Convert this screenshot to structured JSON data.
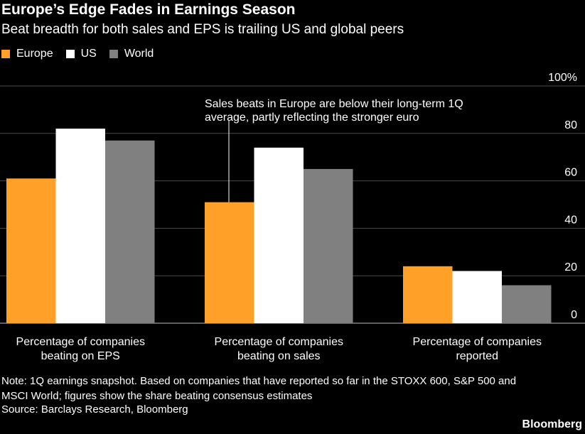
{
  "header": {
    "title": "Europe’s Edge Fades in Earnings Season",
    "subtitle": "Beat breadth for both sales and EPS is trailing US and global peers"
  },
  "colors": {
    "europe": "#FFA029",
    "us": "#FFFFFF",
    "world": "#808080",
    "grid": "#4a4a4a",
    "axis": "#bfbfbf"
  },
  "chart_data": {
    "type": "bar",
    "title": "Europe’s Edge Fades in Earnings Season",
    "categories": [
      [
        "Percentage of companies",
        "beating on EPS"
      ],
      [
        "Percentage of companies",
        "beating on sales"
      ],
      [
        "Percentage of companies",
        "reported"
      ]
    ],
    "series": [
      {
        "name": "Europe",
        "values": [
          61,
          51,
          24
        ]
      },
      {
        "name": "US",
        "values": [
          82,
          74,
          22
        ]
      },
      {
        "name": "World",
        "values": [
          77,
          65,
          16
        ]
      }
    ],
    "ylim": [
      0,
      100
    ],
    "yticks": [
      0,
      20,
      40,
      60,
      80,
      100
    ],
    "ytick_labels": [
      "0",
      "20",
      "40",
      "60",
      "80",
      "100%"
    ],
    "legend_position": "top-left",
    "annotation": {
      "lines": [
        "Sales beats in Europe are below their long-term 1Q",
        "average, partly reflecting the stronger euro"
      ],
      "target_series": 0,
      "target_category": 1
    }
  },
  "footer": {
    "note_line1": "Note: 1Q earnings snapshot. Based on companies that have reported so far in the STOXX 600, S&P 500 and",
    "note_line2": "MSCI World; figures show the share beating consensus estimates",
    "source": "Source: Barclays Research, Bloomberg",
    "brand": "Bloomberg"
  }
}
